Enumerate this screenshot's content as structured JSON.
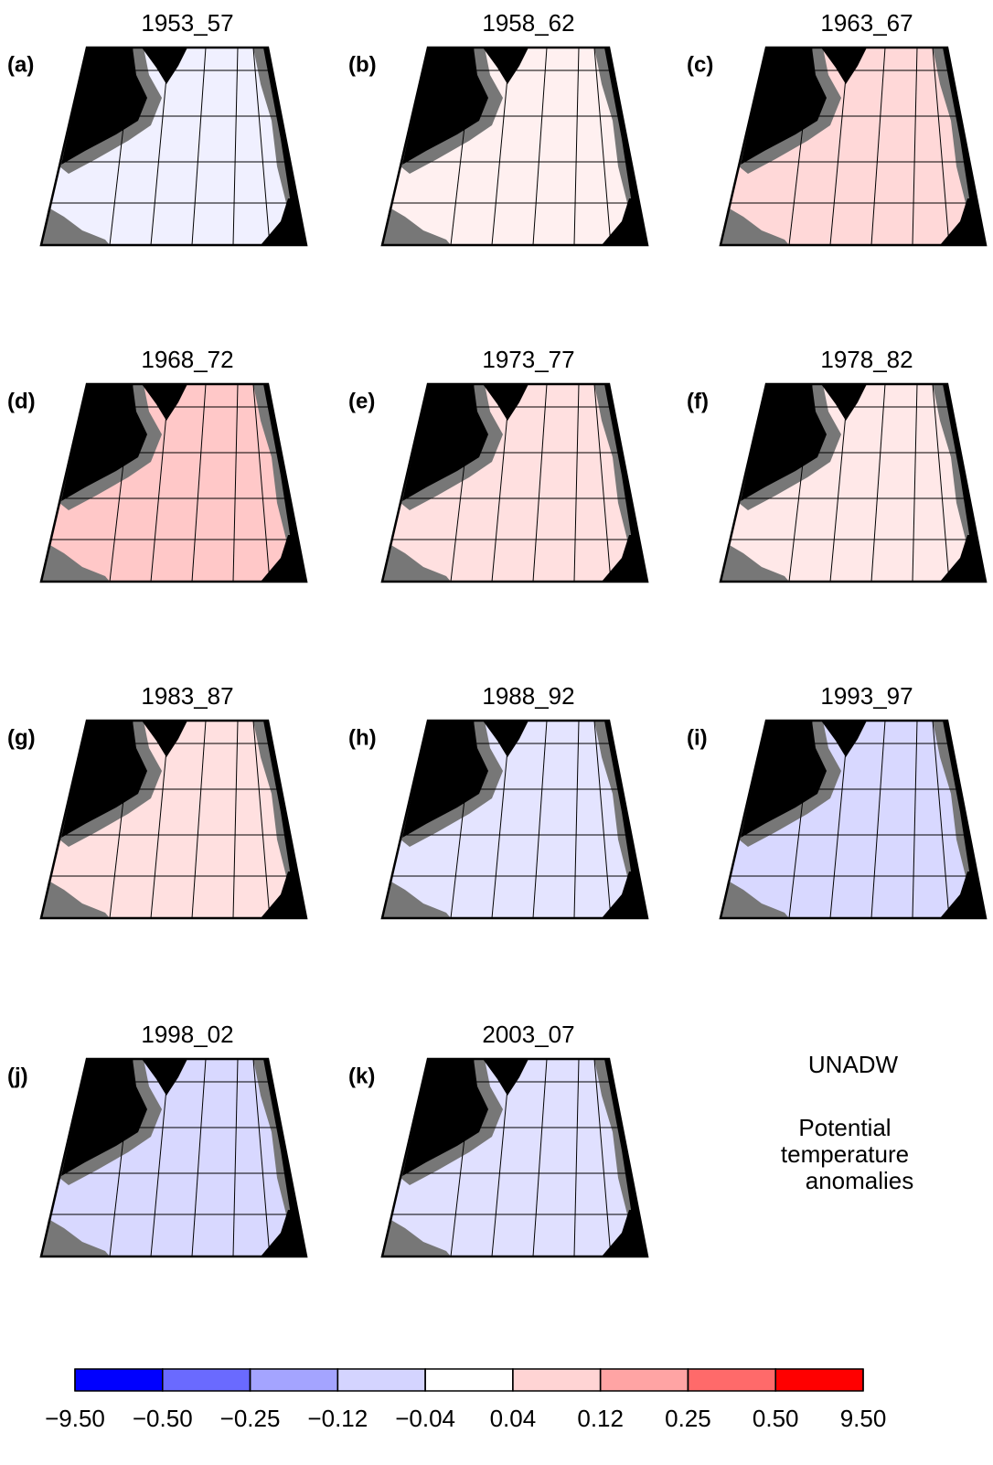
{
  "panels": [
    {
      "title": "1953_57",
      "label": "(a)",
      "color": "#f0f0ff"
    },
    {
      "title": "1958_62",
      "label": "(b)",
      "color": "#fff0f0"
    },
    {
      "title": "1963_67",
      "label": "(c)",
      "color": "#ffd8d8"
    },
    {
      "title": "1968_72",
      "label": "(d)",
      "color": "#ffc8c8"
    },
    {
      "title": "1973_77",
      "label": "(e)",
      "color": "#ffe0e0"
    },
    {
      "title": "1978_82",
      "label": "(f)",
      "color": "#ffe8e8"
    },
    {
      "title": "1983_87",
      "label": "(g)",
      "color": "#ffe0e0"
    },
    {
      "title": "1988_92",
      "label": "(h)",
      "color": "#e4e4ff"
    },
    {
      "title": "1993_97",
      "label": "(i)",
      "color": "#d8d8ff"
    },
    {
      "title": "1998_02",
      "label": "(j)",
      "color": "#d8d8ff"
    },
    {
      "title": "2003_07",
      "label": "(k)",
      "color": "#e0e0ff"
    }
  ],
  "annotation": {
    "name": "UNADW",
    "lines": [
      "Potential",
      "temperature",
      "anomalies"
    ]
  },
  "colorbar": {
    "ticks": [
      {
        "value": -9.5,
        "label": "−9.50"
      },
      {
        "value": -0.5,
        "label": "−0.50"
      },
      {
        "value": -0.25,
        "label": "−0.25"
      },
      {
        "value": -0.12,
        "label": "−0.12"
      },
      {
        "value": -0.04,
        "label": "−0.04"
      },
      {
        "value": 0.04,
        "label": "0.04"
      },
      {
        "value": 0.12,
        "label": "0.12"
      },
      {
        "value": 0.25,
        "label": "0.25"
      },
      {
        "value": 0.5,
        "label": "0.50"
      },
      {
        "value": 9.5,
        "label": "9.50"
      }
    ],
    "colors": [
      "#0000ff",
      "#6a6aff",
      "#a4a4ff",
      "#d4d4ff",
      "#ffffff",
      "#ffd4d4",
      "#ffa4a4",
      "#ff6a6a",
      "#ff0000"
    ]
  }
}
